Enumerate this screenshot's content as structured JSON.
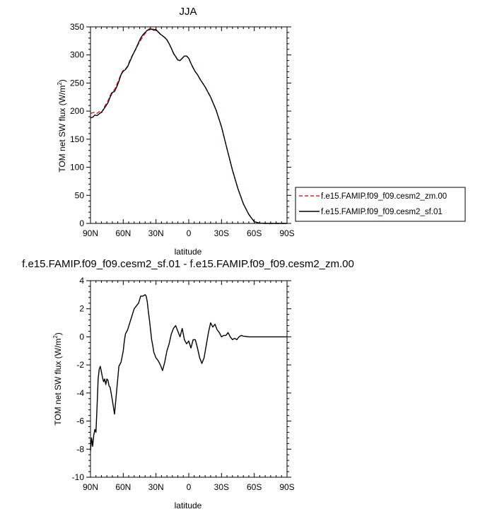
{
  "chart_data": [
    {
      "type": "line",
      "title": "JJA",
      "xlabel": "latitude",
      "ylabel_main": "TOM net SW flux (W/m",
      "ylabel_sup": "2",
      "ylabel_tail": ")",
      "xlim": [
        90,
        -90
      ],
      "ylim": [
        0,
        350
      ],
      "x_ticks": [
        90,
        60,
        30,
        0,
        -30,
        -60,
        -90
      ],
      "x_tick_labels": [
        "90N",
        "60N",
        "30N",
        "0",
        "30S",
        "60S",
        "90S"
      ],
      "y_ticks": [
        0,
        50,
        100,
        150,
        200,
        250,
        300,
        350
      ],
      "y_tick_labels": [
        "0",
        "50",
        "100",
        "150",
        "200",
        "250",
        "300",
        "350"
      ],
      "legend_position": "right, lower",
      "series": [
        {
          "name": "f.e15.FAMIP.f09_f09.cesm2_zm.00",
          "color": "#d62728",
          "dash": "dashed",
          "x": [
            90,
            88,
            86,
            84,
            82,
            80,
            78,
            76,
            74,
            72,
            70,
            68,
            66,
            64,
            62,
            60,
            58,
            56,
            54,
            52,
            50,
            48,
            46,
            44,
            42,
            40,
            38,
            36,
            34,
            32,
            30,
            28,
            26,
            24,
            22,
            20,
            18,
            16,
            14,
            12,
            10,
            8,
            6,
            4,
            2,
            0,
            -2,
            -4,
            -6,
            -8,
            -10,
            -15,
            -20,
            -25,
            -30,
            -35,
            -40,
            -45,
            -50,
            -55,
            -60,
            -65,
            -70,
            -75,
            -80,
            -85,
            -90
          ],
          "y": [
            196,
            197,
            198,
            196,
            199,
            196,
            205,
            212,
            218,
            228,
            235,
            238,
            247,
            256,
            266,
            273,
            275,
            280,
            290,
            298,
            305,
            312,
            320,
            326,
            333,
            338,
            343,
            347,
            348,
            345,
            346,
            341,
            337,
            334,
            331,
            327,
            320,
            312,
            303,
            297,
            291,
            290,
            294,
            298,
            298,
            294,
            285,
            277,
            270,
            265,
            258,
            243,
            225,
            202,
            172,
            133,
            95,
            62,
            35,
            16,
            3,
            0.5,
            0,
            0,
            0,
            0,
            0
          ]
        },
        {
          "name": "f.e15.FAMIP.f09_f09.cesm2_sf.01",
          "color": "#000000",
          "dash": "solid",
          "x": [
            90,
            88,
            86,
            84,
            82,
            80,
            78,
            76,
            74,
            72,
            70,
            68,
            66,
            64,
            62,
            60,
            58,
            56,
            54,
            52,
            50,
            48,
            46,
            44,
            42,
            40,
            38,
            36,
            34,
            32,
            30,
            28,
            26,
            24,
            22,
            20,
            18,
            16,
            14,
            12,
            10,
            8,
            6,
            4,
            2,
            0,
            -2,
            -4,
            -6,
            -8,
            -10,
            -15,
            -20,
            -25,
            -30,
            -35,
            -40,
            -45,
            -50,
            -55,
            -60,
            -65,
            -70,
            -75,
            -80,
            -85,
            -90
          ],
          "y": [
            188,
            189,
            193,
            192,
            195,
            198,
            203,
            209,
            215,
            225,
            233,
            235,
            243,
            253,
            265,
            271,
            274,
            279,
            288,
            297,
            305,
            313,
            322,
            330,
            336,
            340,
            344,
            345,
            346,
            344,
            345,
            341,
            337,
            334,
            331,
            327,
            320,
            312,
            303,
            297,
            291,
            290,
            294,
            298,
            298,
            294,
            285,
            277,
            270,
            265,
            258,
            243,
            225,
            202,
            172,
            133,
            95,
            62,
            35,
            16,
            3,
            0.5,
            0,
            0,
            0,
            0,
            0
          ]
        }
      ]
    },
    {
      "type": "line",
      "title": "f.e15.FAMIP.f09_f09.cesm2_sf.01 - f.e15.FAMIP.f09_f09.cesm2_zm.00",
      "xlabel": "latitude",
      "ylabel_main": "TOM net SW flux (W/m",
      "ylabel_sup": "2",
      "ylabel_tail": ")",
      "xlim": [
        90,
        -90
      ],
      "ylim": [
        -10,
        4
      ],
      "x_ticks": [
        90,
        60,
        30,
        0,
        -30,
        -60,
        -90
      ],
      "x_tick_labels": [
        "90N",
        "60N",
        "30N",
        "0",
        "30S",
        "60S",
        "90S"
      ],
      "y_ticks": [
        -10,
        -8,
        -6,
        -4,
        -2,
        0,
        2,
        4
      ],
      "y_tick_labels": [
        "-10",
        "-8",
        "-6",
        "-4",
        "-2",
        "0",
        "2",
        "4"
      ],
      "series": [
        {
          "name": "",
          "color": "#000000",
          "dash": "solid",
          "x": [
            90,
            89,
            88,
            87,
            86,
            85,
            84,
            83,
            82,
            81,
            80,
            79,
            78,
            77,
            76,
            75,
            74,
            73,
            72,
            70,
            68,
            66,
            64,
            62,
            60,
            59,
            58,
            56,
            54,
            52,
            50,
            48,
            46,
            44,
            42,
            40,
            39,
            38,
            37,
            36,
            35,
            34,
            33,
            32,
            30,
            28,
            26,
            24,
            22,
            20,
            18,
            16,
            14,
            12,
            10,
            8,
            6,
            4,
            2,
            0,
            -2,
            -4,
            -6,
            -8,
            -10,
            -12,
            -14,
            -16,
            -18,
            -20,
            -22,
            -24,
            -26,
            -28,
            -30,
            -32,
            -34,
            -36,
            -38,
            -40,
            -42,
            -44,
            -46,
            -48,
            -50,
            -55,
            -60,
            -65,
            -70,
            -75,
            -80,
            -85,
            -90
          ],
          "y": [
            -8.1,
            -7.2,
            -7.8,
            -7.0,
            -6.6,
            -6.8,
            -5.0,
            -3.0,
            -2.3,
            -2.1,
            -2.5,
            -2.9,
            -3.2,
            -3.0,
            -3.4,
            -3.0,
            -3.1,
            -3.5,
            -3.6,
            -4.5,
            -5.5,
            -3.8,
            -2.1,
            -1.8,
            -1.0,
            -0.3,
            0.2,
            0.5,
            1.0,
            1.5,
            2.0,
            2.2,
            2.4,
            2.9,
            2.9,
            3.0,
            2.9,
            2.5,
            1.8,
            1.2,
            0.5,
            -0.2,
            -0.6,
            -1.1,
            -1.5,
            -1.7,
            -2.0,
            -2.4,
            -1.8,
            -1.0,
            -0.5,
            0.2,
            0.6,
            0.8,
            0.4,
            0.0,
            0.6,
            -0.2,
            -0.5,
            -0.3,
            -0.8,
            -0.2,
            -0.2,
            -0.8,
            -1.5,
            -1.9,
            -1.5,
            -0.6,
            0.3,
            1.0,
            0.7,
            0.9,
            0.5,
            0.3,
            0.0,
            0.1,
            0.1,
            0.3,
            0.0,
            -0.2,
            -0.1,
            -0.2,
            0.0,
            0.1,
            0.05,
            0.0,
            0.0,
            0.0,
            0.0,
            0.0,
            0.0,
            0.0,
            0.0
          ]
        }
      ]
    }
  ]
}
